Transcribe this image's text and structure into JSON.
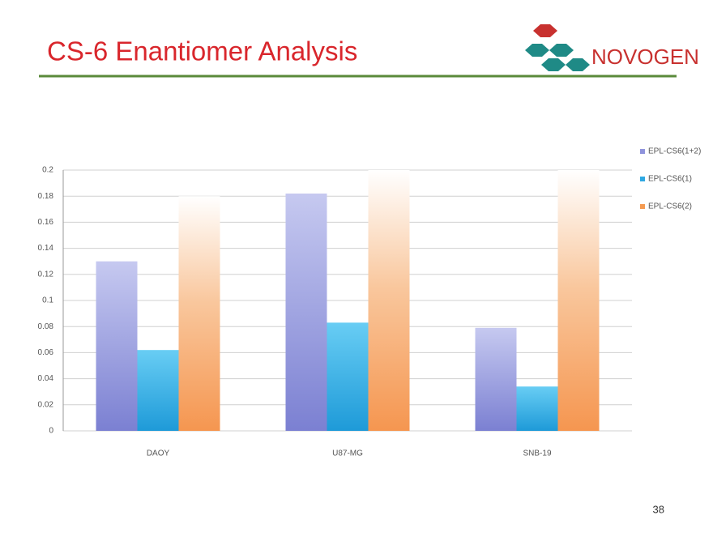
{
  "slide_title": "CS-6 Enantiomer Analysis",
  "logo_text": "NOVOGEN",
  "page_number": "38",
  "chart_data": {
    "type": "bar",
    "categories": [
      "DAOY",
      "U87-MG",
      "SNB-19"
    ],
    "series": [
      {
        "name": "EPL-CS6(1+2)",
        "color": "#8f93dc",
        "values": [
          0.13,
          0.182,
          0.079
        ]
      },
      {
        "name": "EPL-CS6(1)",
        "color": "#2ea8e2",
        "values": [
          0.062,
          0.083,
          0.034
        ]
      },
      {
        "name": "EPL-CS6(2)",
        "color": "#f59b52",
        "values": [
          0.18,
          0.2,
          0.2
        ]
      }
    ],
    "ylim": [
      0,
      0.2
    ],
    "yticks": [
      0,
      0.02,
      0.04,
      0.06,
      0.08,
      0.1,
      0.12,
      0.14,
      0.16,
      0.18,
      0.2
    ],
    "grid": true,
    "legend": "right"
  }
}
